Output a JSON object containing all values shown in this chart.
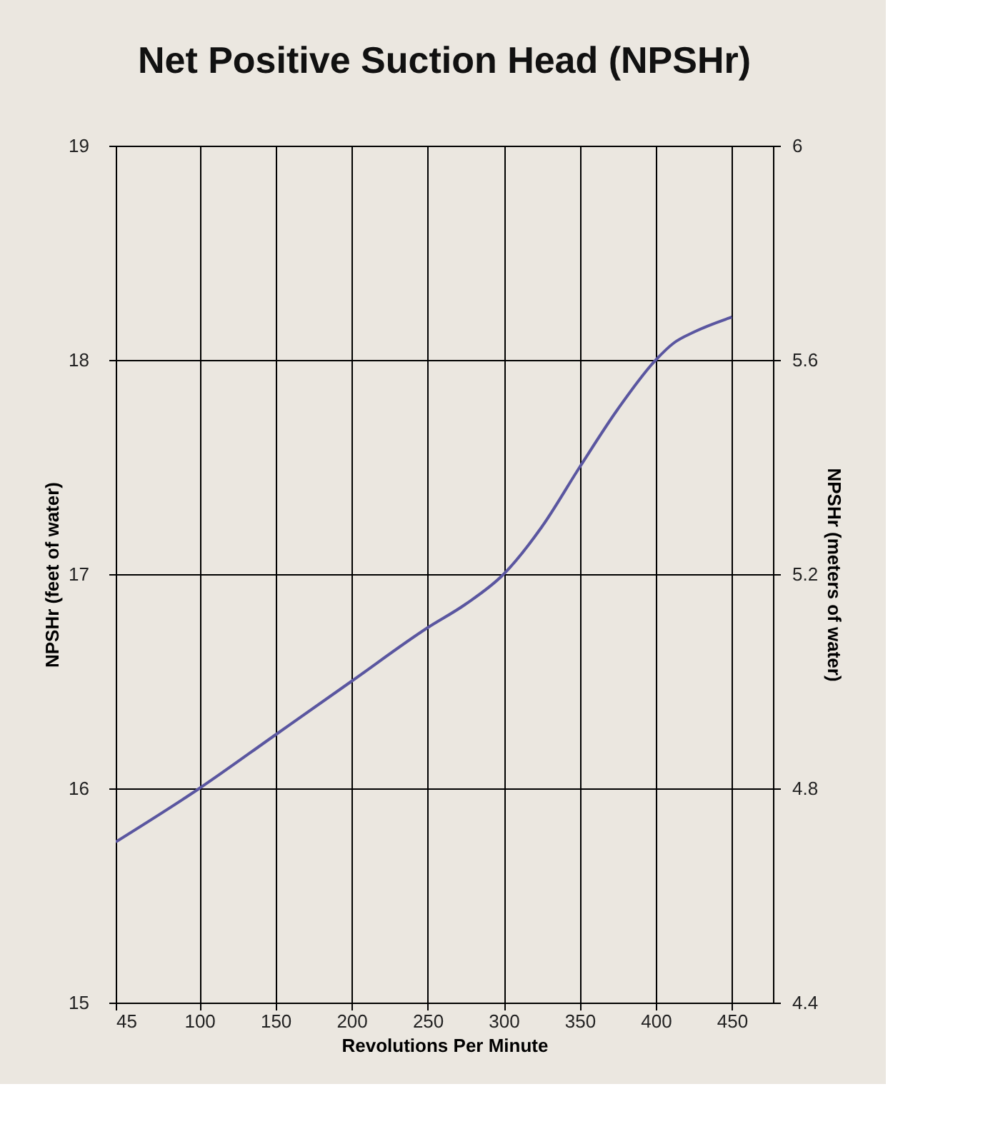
{
  "chart_data": {
    "type": "line",
    "title": "Net Positive Suction Head (NPSHr)",
    "xlabel": "Revolutions Per Minute",
    "ylabel": "NPSHr (feet of water)",
    "y2label": "NPSHr (meters of water)",
    "x": [
      45,
      100,
      150,
      200,
      250,
      275,
      300,
      325,
      350,
      375,
      400,
      412,
      425,
      450
    ],
    "series": [
      {
        "color": "#5a56a0",
        "values": [
          15.75,
          16,
          16.25,
          16.5,
          16.75,
          16.86,
          17,
          17.22,
          17.5,
          17.77,
          18,
          18.08,
          18.13,
          18.2
        ]
      }
    ],
    "xlim": [
      45,
      477
    ],
    "xticks": [
      45,
      100,
      150,
      200,
      250,
      300,
      350,
      400,
      450
    ],
    "ylim": [
      15,
      19
    ],
    "yticks": [
      15,
      16,
      17,
      18,
      19
    ],
    "y2lim": [
      4.4,
      6
    ],
    "y2ticks": [
      4.4,
      4.8,
      5.2,
      5.6,
      6
    ],
    "grid": true,
    "line_style": "solid",
    "marker": "none"
  }
}
